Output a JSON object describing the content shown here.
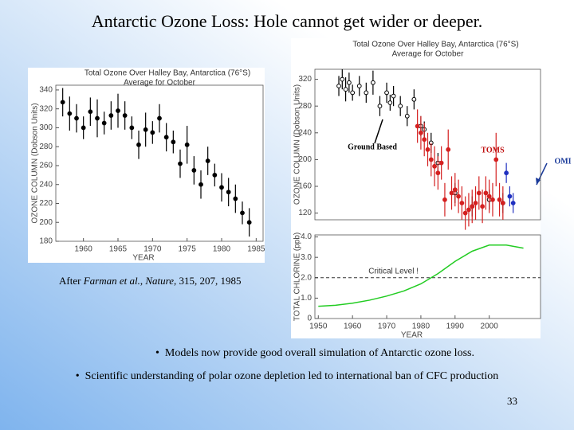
{
  "title": "Antarctic Ozone Loss: Hole cannot get wider or deeper.",
  "citation": [
    {
      "text": "After ",
      "italic": false
    },
    {
      "text": "Farman et al.",
      "italic": true
    },
    {
      "text": ", ",
      "italic": false
    },
    {
      "text": "Nature",
      "italic": true
    },
    {
      "text": ", 315, 207, 1985",
      "italic": false
    }
  ],
  "bullets": [
    "Models now provide good overall simulation of  Antarctic ozone loss.",
    "Scientific understanding of polar ozone depletion led to international ban of CFC production"
  ],
  "page_number": "33",
  "chart_data": [
    {
      "type": "scatter",
      "title": "Total Ozone Over Halley Bay, Antarctica (76°S)",
      "subtitle": "Average for October",
      "x_label": "YEAR",
      "y_label": "OZONE COLUMN (Dobson Units)",
      "xlim": [
        1956,
        1986
      ],
      "ylim": [
        180,
        345
      ],
      "xticks": [
        1960,
        1965,
        1970,
        1975,
        1980,
        1985
      ],
      "yticks": [
        180,
        200,
        220,
        240,
        260,
        280,
        300,
        320,
        340
      ],
      "grid": false,
      "series": [
        {
          "color": "#000000",
          "marker": "filled",
          "x": [
            1957,
            1958,
            1959,
            1960,
            1961,
            1962,
            1963,
            1964,
            1965,
            1966,
            1967,
            1968,
            1969,
            1970,
            1971,
            1972,
            1973,
            1974,
            1975,
            1976,
            1977,
            1978,
            1979,
            1980,
            1981,
            1982,
            1983,
            1984
          ],
          "values": [
            327,
            315,
            310,
            300,
            317,
            310,
            305,
            313,
            318,
            313,
            300,
            282,
            298,
            295,
            310,
            290,
            285,
            262,
            282,
            255,
            240,
            265,
            250,
            237,
            232,
            225,
            210,
            200
          ],
          "errors": [
            15,
            18,
            15,
            12,
            15,
            20,
            12,
            15,
            18,
            15,
            12,
            15,
            18,
            12,
            15,
            15,
            12,
            15,
            20,
            15,
            15,
            15,
            12,
            15,
            15,
            15,
            12,
            15
          ]
        }
      ]
    },
    {
      "type": "scatter",
      "title": "Total Ozone Over Halley Bay, Antarctica (76°S)",
      "subtitle": "Average for October",
      "y_label": "OZONE COLUMN (Dobson Units)",
      "xlim": [
        1949,
        2015
      ],
      "ylim": [
        110,
        335
      ],
      "yticks": [
        120,
        160,
        200,
        240,
        280,
        320
      ],
      "grid": false,
      "series": [
        {
          "name": "Ground Based",
          "color": "#000000",
          "marker": "open",
          "x": [
            1956,
            1957,
            1958,
            1959,
            1960,
            1962,
            1964,
            1966,
            1968,
            1970,
            1971,
            1972,
            1974,
            1976,
            1978,
            1980,
            1981,
            1983,
            1985,
            1990,
            1995,
            2000,
            2004
          ],
          "values": [
            310,
            320,
            305,
            315,
            300,
            310,
            300,
            315,
            280,
            300,
            285,
            295,
            280,
            265,
            290,
            250,
            245,
            225,
            195,
            150,
            130,
            140,
            135
          ],
          "errors": [
            15,
            15,
            18,
            15,
            12,
            15,
            15,
            18,
            15,
            15,
            12,
            15,
            15,
            15,
            15,
            15,
            12,
            15,
            15,
            15,
            15,
            15,
            15
          ]
        },
        {
          "name": "TOMS",
          "color": "#d42020",
          "marker": "filled",
          "x": [
            1979,
            1980,
            1981,
            1982,
            1983,
            1984,
            1985,
            1986,
            1987,
            1988,
            1989,
            1990,
            1991,
            1992,
            1993,
            1994,
            1995,
            1996,
            1997,
            1998,
            1999,
            2000,
            2001,
            2002,
            2003,
            2004
          ],
          "values": [
            250,
            240,
            230,
            215,
            200,
            190,
            180,
            195,
            140,
            215,
            150,
            155,
            145,
            135,
            120,
            125,
            130,
            135,
            150,
            130,
            150,
            145,
            140,
            200,
            140,
            135
          ],
          "errors": [
            25,
            25,
            25,
            25,
            25,
            30,
            25,
            25,
            25,
            30,
            25,
            25,
            25,
            25,
            25,
            25,
            25,
            25,
            25,
            25,
            25,
            25,
            25,
            40,
            25,
            25
          ]
        },
        {
          "name": "OMI",
          "color": "#2030c0",
          "marker": "filled",
          "x": [
            2005,
            2006,
            2007
          ],
          "values": [
            180,
            145,
            135
          ],
          "errors": [
            15,
            15,
            15
          ]
        }
      ]
    },
    {
      "type": "line",
      "x_label": "YEAR",
      "y_label": "TOTAL CHLORINE (ppb)",
      "xlim": [
        1949,
        2015
      ],
      "ylim": [
        0,
        4.1
      ],
      "xticks": [
        1950,
        1960,
        1970,
        1980,
        1990,
        2000
      ],
      "yticks": [
        0,
        {
          "value": 1,
          "label": "1.0"
        },
        {
          "value": 2,
          "label": "2.0"
        },
        {
          "value": 3,
          "label": "3.0"
        },
        {
          "value": 4,
          "label": "4.0"
        }
      ],
      "grid": false,
      "reference_line": {
        "value": 2,
        "label": "Critical Level !"
      },
      "series": [
        {
          "color": "#22cc22",
          "x": [
            1950,
            1955,
            1960,
            1965,
            1970,
            1975,
            1980,
            1985,
            1990,
            1995,
            2000,
            2005,
            2010
          ],
          "values": [
            0.6,
            0.65,
            0.75,
            0.9,
            1.1,
            1.35,
            1.7,
            2.2,
            2.8,
            3.3,
            3.6,
            3.6,
            3.45
          ]
        }
      ]
    }
  ]
}
